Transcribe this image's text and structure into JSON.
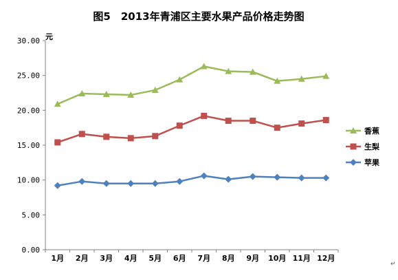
{
  "chart_data": {
    "type": "line",
    "title": "图5　2013年青浦区主要水果产品价格走势图",
    "ylabel": "元",
    "xlabel": "",
    "ylim": [
      0,
      30
    ],
    "ytick_labels": [
      "0.00",
      "5.00",
      "10.00",
      "15.00",
      "20.00",
      "25.00",
      "30.00"
    ],
    "categories": [
      "1月",
      "2月",
      "3月",
      "4月",
      "5月",
      "6月",
      "7月",
      "8月",
      "9月",
      "10月",
      "11月",
      "12月"
    ],
    "grid": false,
    "legend_position": "right",
    "series": [
      {
        "name": "香蕉",
        "color": "#9BBB59",
        "marker": "triangle",
        "values": [
          20.9,
          22.4,
          22.3,
          22.2,
          22.9,
          24.4,
          26.3,
          25.6,
          25.5,
          24.2,
          24.5,
          24.9
        ]
      },
      {
        "name": "生梨",
        "color": "#C0504D",
        "marker": "square",
        "values": [
          15.4,
          16.6,
          16.2,
          16.0,
          16.3,
          17.8,
          19.2,
          18.5,
          18.5,
          17.5,
          18.1,
          18.6
        ]
      },
      {
        "name": "苹果",
        "color": "#4F81BD",
        "marker": "diamond",
        "values": [
          9.2,
          9.8,
          9.5,
          9.5,
          9.5,
          9.8,
          10.6,
          10.1,
          10.5,
          10.4,
          10.3,
          10.3
        ]
      }
    ]
  },
  "return_mark": "↵"
}
